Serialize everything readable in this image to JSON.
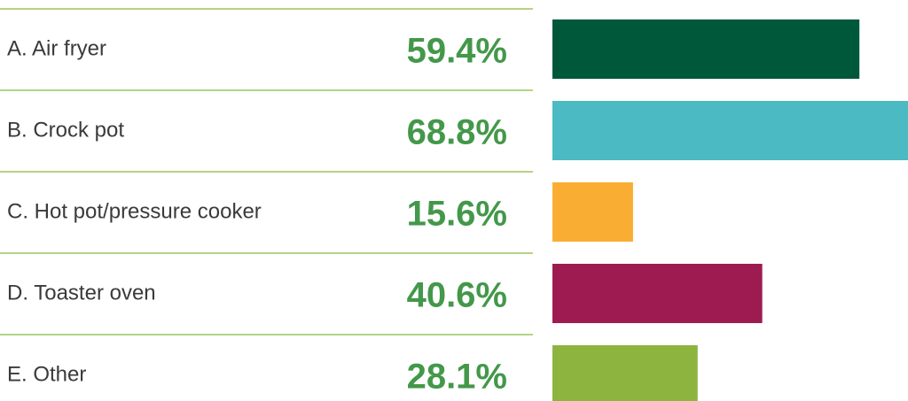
{
  "chart_data": {
    "type": "bar",
    "categories": [
      "A. Air fryer",
      "B. Crock pot",
      "C. Hot pot/pressure cooker",
      "D. Toaster oven",
      "E. Other"
    ],
    "values": [
      59.4,
      68.8,
      15.6,
      40.6,
      28.1
    ],
    "value_labels": [
      "59.4%",
      "68.8%",
      "15.6%",
      "40.6%",
      "28.1%"
    ],
    "colors": [
      "#00583b",
      "#4bbac2",
      "#f9ae33",
      "#9e1b51",
      "#8cb43f"
    ]
  }
}
